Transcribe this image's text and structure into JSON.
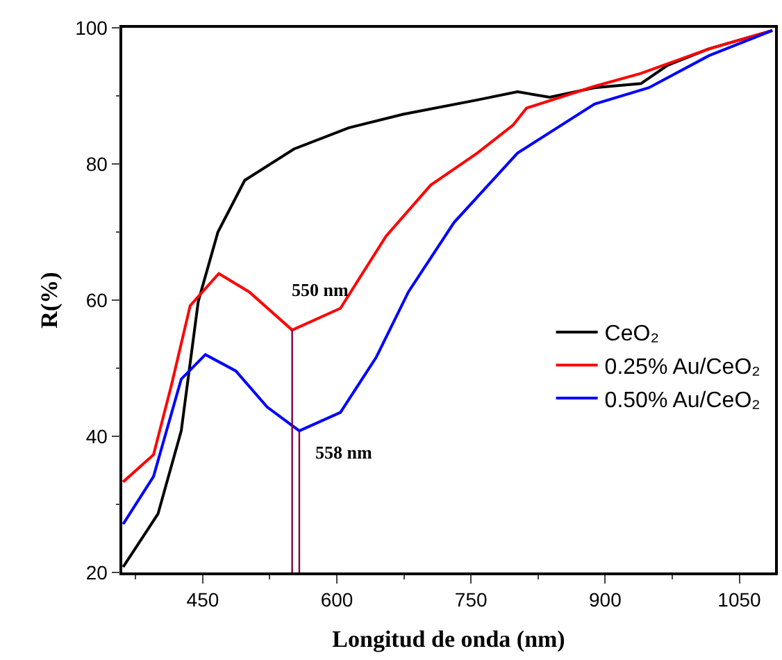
{
  "chart_data": {
    "type": "line",
    "xlabel": "Longitud de onda (nm)",
    "ylabel": "R(%)",
    "xlim": [
      360,
      1090
    ],
    "xticks": [
      450,
      600,
      750,
      900,
      1050
    ],
    "ylim": [
      20,
      100
    ],
    "yticks": [
      20,
      40,
      60,
      80,
      100
    ],
    "legend": "right",
    "marker": "none",
    "line_style": "solid",
    "series": [
      {
        "name": "CeO₂",
        "color": "#000000",
        "x": [
          361,
          400,
          426,
          445,
          467,
          497,
          552,
          613,
          674,
          757,
          802,
          838,
          888,
          940,
          970,
          1016,
          1087
        ],
        "values": [
          20.8,
          28.6,
          40.8,
          59.8,
          70,
          77.6,
          82.2,
          85.3,
          87.3,
          89.4,
          90.6,
          89.8,
          91.2,
          91.8,
          94.5,
          96.9,
          99.6
        ]
      },
      {
        "name": "0.25% Au/CeO₂",
        "color": "#ff0000",
        "x": [
          361,
          395,
          415,
          436,
          468,
          502,
          550,
          604,
          655,
          705,
          757,
          797,
          812,
          888,
          940,
          1016,
          1087
        ],
        "values": [
          33.3,
          37.3,
          47.5,
          59.2,
          63.9,
          61.2,
          55.6,
          58.8,
          69.4,
          76.9,
          81.6,
          85.7,
          88.2,
          91.4,
          93.3,
          96.9,
          99.6
        ]
      },
      {
        "name": "0.50% Au/CeO₂",
        "color": "#0000ff",
        "x": [
          361,
          395,
          426,
          453,
          487,
          522,
          558,
          604,
          644,
          680,
          731,
          802,
          888,
          949,
          1016,
          1087
        ],
        "values": [
          27.1,
          34.1,
          48.4,
          52.0,
          49.6,
          44.3,
          40.8,
          43.5,
          51.6,
          61.2,
          71.4,
          81.6,
          88.8,
          91.2,
          95.9,
          99.6
        ]
      },
      {
        "color": "#800040",
        "x": [
          550,
          550
        ],
        "values": [
          20,
          55.6
        ]
      },
      {
        "color": "#800040",
        "x": [
          558,
          558
        ],
        "values": [
          20,
          40.8
        ]
      }
    ],
    "annotations": [
      {
        "text": "550 nm",
        "x": 550,
        "y": 55.6
      },
      {
        "text": "558 nm",
        "x": 558,
        "y": 40.8
      }
    ]
  }
}
